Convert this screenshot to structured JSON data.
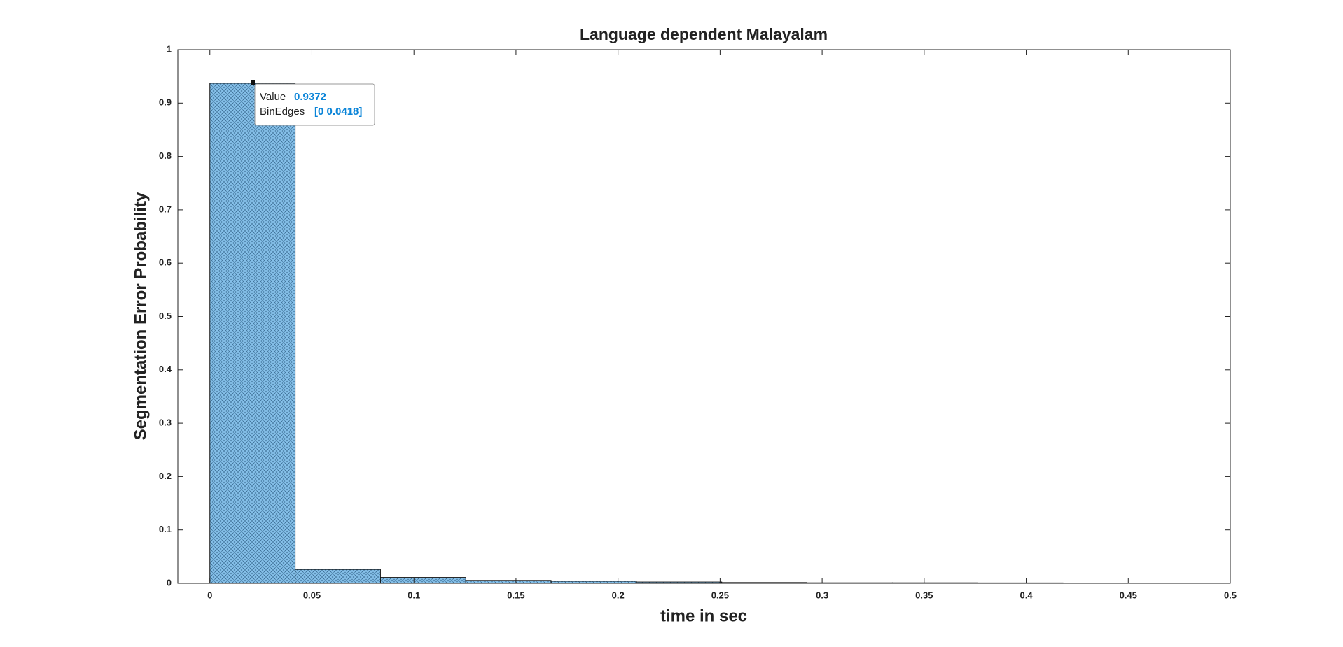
{
  "chart_data": {
    "type": "histogram",
    "title": "Language dependent Malayalam",
    "x_label": "time in sec",
    "y_label": "Segmentation Error Probability",
    "bins": [
      0,
      0.0418,
      0.0836,
      0.1254,
      0.1672,
      0.209,
      0.2508,
      0.2926,
      0.3344,
      0.3762,
      0.418
    ],
    "values": [
      0.9372,
      0.026,
      0.011,
      0.0055,
      0.004,
      0.0025,
      0.0015,
      0.001,
      0.001,
      0.0008
    ],
    "color": "#7dbbe8",
    "xlim": [
      -0.0157,
      0.5
    ],
    "xticks": [
      0,
      0.05,
      0.1,
      0.15,
      0.2,
      0.25,
      0.3,
      0.35,
      0.4,
      0.45,
      0.5
    ],
    "ylim": [
      0,
      1
    ],
    "yticks": [
      0,
      0.1,
      0.2,
      0.3,
      0.4,
      0.5,
      0.6,
      0.7,
      0.8,
      0.9,
      1
    ],
    "grid": false,
    "datatip": {
      "value_label": "Value",
      "edges_label": "BinEdges",
      "edges_text": "[0 0.0418]"
    }
  }
}
